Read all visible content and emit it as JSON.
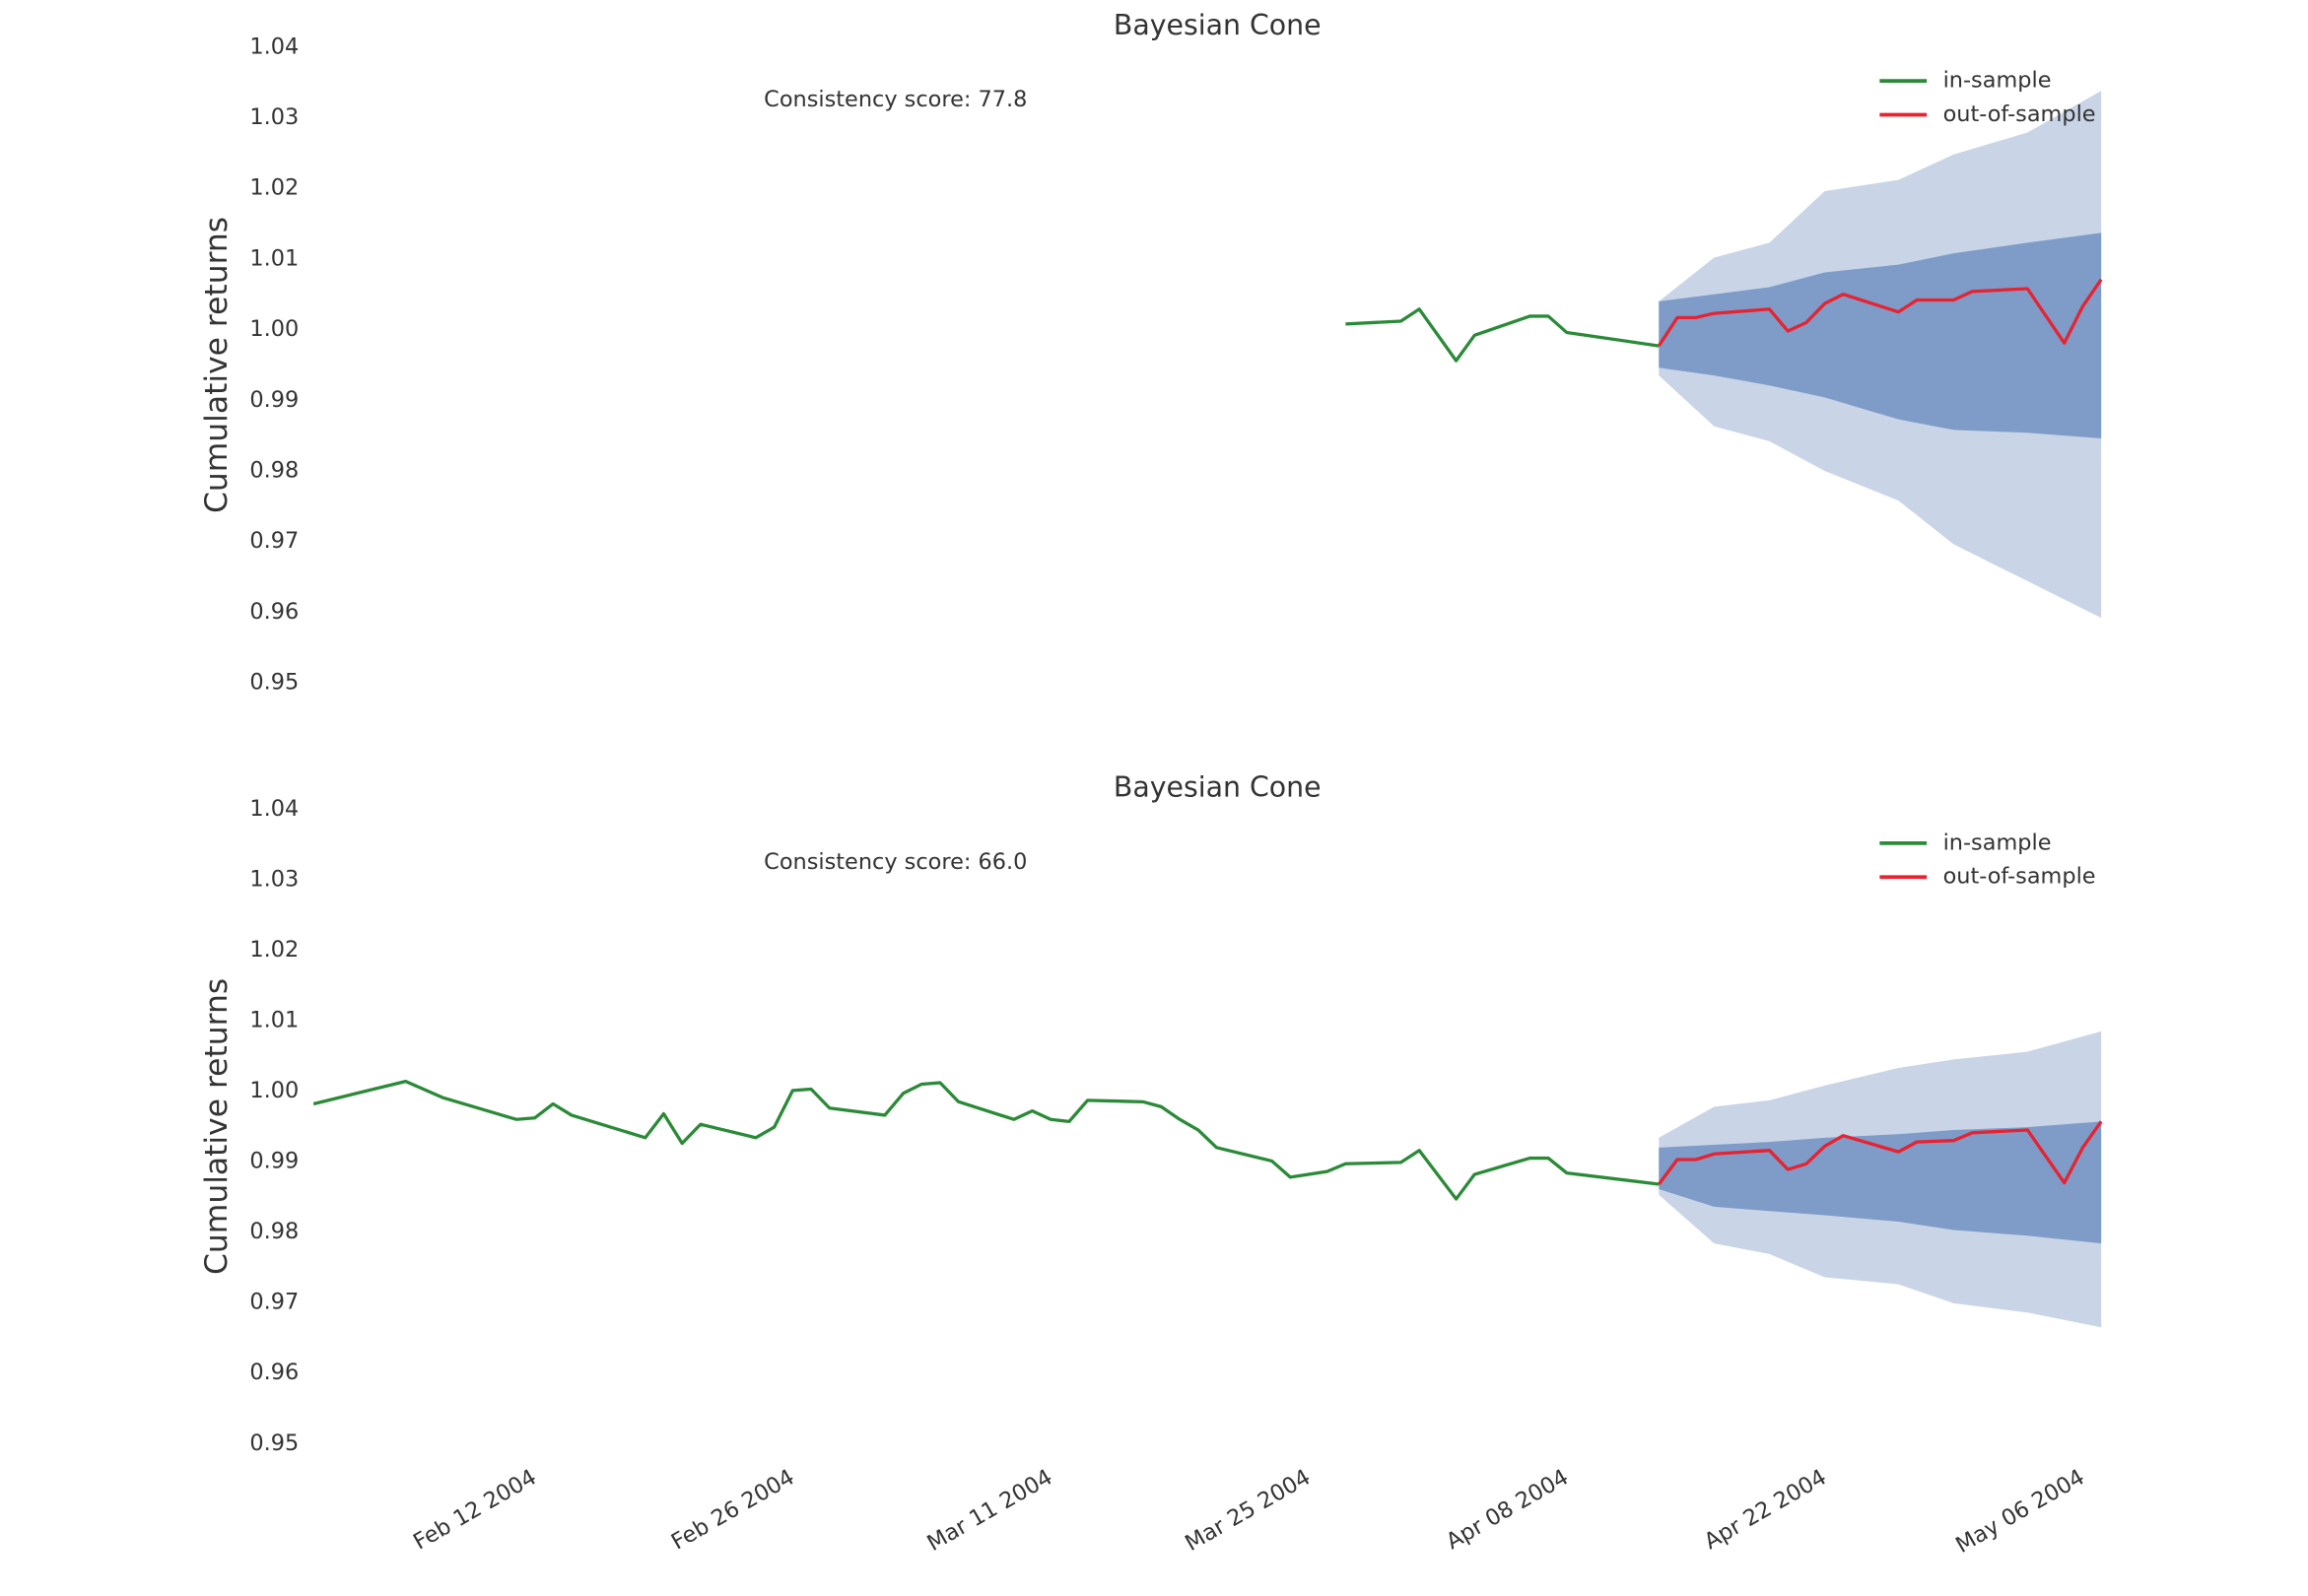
{
  "chart_data": [
    {
      "type": "line",
      "title": "Bayesian Cone",
      "ylabel": "Cumulative returns",
      "annotation": "Consistency score: 77.8",
      "xlim": [
        "2004-01-31",
        "2004-05-08"
      ],
      "ylim": [
        0.95,
        1.04
      ],
      "yticks": [
        0.95,
        0.96,
        0.97,
        0.98,
        0.99,
        {
          "value": 1,
          "label": "1.00"
        },
        1.01,
        1.02,
        1.03,
        1.04
      ],
      "grid": false,
      "legend": "upper right",
      "series": [
        {
          "name": "in-sample",
          "color": "#2a8a37",
          "x": [
            "2004-03-27",
            "2004-03-30",
            "2004-03-31",
            "2004-04-02",
            "2004-04-03",
            "2004-04-06",
            "2004-04-07",
            "2004-04-08",
            "2004-04-13"
          ],
          "values": [
            1.0008,
            1.0012,
            1.0029,
            0.9956,
            0.9992,
            1.0019,
            1.0019,
            0.9996,
            0.9977
          ]
        },
        {
          "name": "out-of-sample",
          "color": "#e8222f",
          "x": [
            "2004-04-13",
            "2004-04-14",
            "2004-04-15",
            "2004-04-16",
            "2004-04-19",
            "2004-04-20",
            "2004-04-21",
            "2004-04-22",
            "2004-04-23",
            "2004-04-26",
            "2004-04-27",
            "2004-04-29",
            "2004-04-30",
            "2004-05-03",
            "2004-05-05",
            "2004-05-06",
            "2004-05-07"
          ],
          "values": [
            0.9977,
            1.0017,
            1.0017,
            1.0023,
            1.0029,
            0.9998,
            1.001,
            1.0037,
            1.005,
            1.0025,
            1.0042,
            1.0042,
            1.0054,
            1.0058,
            0.9981,
            1.0033,
            1.0071
          ]
        }
      ],
      "cone": {
        "x": [
          "2004-04-13",
          "2004-04-16",
          "2004-04-19",
          "2004-04-22",
          "2004-04-26",
          "2004-04-29",
          "2004-05-03",
          "2004-05-07"
        ],
        "bands": [
          {
            "color": "#c9d4e7",
            "upper": [
              1.004,
              1.0102,
              1.0123,
              1.0196,
              1.0212,
              1.0248,
              1.0279,
              1.0338
            ],
            "lower": [
              0.9935,
              0.9863,
              0.9842,
              0.98,
              0.9758,
              0.9696,
              0.9644,
              0.9592
            ]
          },
          {
            "color": "#7f9bc8",
            "upper": [
              1.004,
              1.005,
              1.006,
              1.0081,
              1.0092,
              1.0108,
              1.0123,
              1.0137
            ],
            "lower": [
              0.9946,
              0.9935,
              0.9921,
              0.9904,
              0.9873,
              0.9858,
              0.9854,
              0.9846
            ]
          }
        ]
      }
    },
    {
      "type": "line",
      "title": "Bayesian Cone",
      "ylabel": "Cumulative returns",
      "annotation": "Consistency score: 66.0",
      "xlim": [
        "2004-01-31",
        "2004-05-08"
      ],
      "ylim": [
        0.95,
        1.04
      ],
      "xticks": [
        {
          "value": "2004-02-12",
          "label": "Feb 12 2004"
        },
        {
          "value": "2004-02-26",
          "label": "Feb 26 2004"
        },
        {
          "value": "2004-03-11",
          "label": "Mar 11 2004"
        },
        {
          "value": "2004-03-25",
          "label": "Mar 25 2004"
        },
        {
          "value": "2004-04-08",
          "label": "Apr 08 2004"
        },
        {
          "value": "2004-04-22",
          "label": "Apr 22 2004"
        },
        {
          "value": "2004-05-06",
          "label": "May 06 2004"
        }
      ],
      "yticks": [
        0.95,
        0.96,
        0.97,
        0.98,
        0.99,
        {
          "value": 1,
          "label": "1.00"
        },
        1.01,
        1.02,
        1.03,
        1.04
      ],
      "grid": false,
      "legend": "upper right",
      "series": [
        {
          "name": "in-sample",
          "color": "#2a8a37",
          "x": [
            "2004-01-31",
            "2004-02-05",
            "2004-02-07",
            "2004-02-11",
            "2004-02-12",
            "2004-02-13",
            "2004-02-14",
            "2004-02-18",
            "2004-02-19",
            "2004-02-20",
            "2004-02-21",
            "2004-02-24",
            "2004-02-25",
            "2004-02-26",
            "2004-02-27",
            "2004-02-28",
            "2004-03-02",
            "2004-03-03",
            "2004-03-04",
            "2004-03-05",
            "2004-03-06",
            "2004-03-09",
            "2004-03-10",
            "2004-03-11",
            "2004-03-12",
            "2004-03-13",
            "2004-03-16",
            "2004-03-17",
            "2004-03-18",
            "2004-03-19",
            "2004-03-20",
            "2004-03-23",
            "2004-03-24",
            "2004-03-26",
            "2004-03-27",
            "2004-03-30",
            "2004-03-31",
            "2004-04-02",
            "2004-04-03",
            "2004-04-06",
            "2004-04-07",
            "2004-04-08",
            "2004-04-13"
          ],
          "values": [
            0.9982,
            1.0014,
            0.9991,
            0.996,
            0.9962,
            0.9982,
            0.9966,
            0.9934,
            0.9968,
            0.9926,
            0.9953,
            0.9934,
            0.9949,
            1.0001,
            1.0003,
            0.9976,
            0.9966,
            0.9997,
            1.001,
            1.0012,
            0.9985,
            0.996,
            0.9972,
            0.996,
            0.9957,
            0.9987,
            0.9985,
            0.9978,
            0.996,
            0.9945,
            0.992,
            0.9901,
            0.9878,
            0.9886,
            0.9897,
            0.9899,
            0.9916,
            0.9847,
            0.9882,
            0.9905,
            0.9905,
            0.9884,
            0.9868
          ]
        },
        {
          "name": "out-of-sample",
          "color": "#e8222f",
          "x": [
            "2004-04-13",
            "2004-04-14",
            "2004-04-15",
            "2004-04-16",
            "2004-04-19",
            "2004-04-20",
            "2004-04-21",
            "2004-04-22",
            "2004-04-23",
            "2004-04-26",
            "2004-04-27",
            "2004-04-29",
            "2004-04-30",
            "2004-05-03",
            "2004-05-05",
            "2004-05-06",
            "2004-05-07"
          ],
          "values": [
            0.9868,
            0.9903,
            0.9903,
            0.9911,
            0.9916,
            0.9889,
            0.9897,
            0.9922,
            0.9937,
            0.9914,
            0.9928,
            0.993,
            0.9941,
            0.9945,
            0.987,
            0.992,
            0.9957
          ]
        }
      ],
      "cone": {
        "x": [
          "2004-04-13",
          "2004-04-16",
          "2004-04-19",
          "2004-04-22",
          "2004-04-26",
          "2004-04-29",
          "2004-05-03",
          "2004-05-07"
        ],
        "bands": [
          {
            "color": "#c9d4e7",
            "upper": [
              0.9934,
              0.9978,
              0.9987,
              1.0008,
              1.0033,
              1.0045,
              1.0056,
              1.0085
            ],
            "lower": [
              0.9853,
              0.9784,
              0.9769,
              0.9736,
              0.9726,
              0.9699,
              0.9686,
              0.9665
            ]
          },
          {
            "color": "#7f9bc8",
            "upper": [
              0.992,
              0.9924,
              0.9928,
              0.9934,
              0.9939,
              0.9945,
              0.9949,
              0.9957
            ],
            "lower": [
              0.9861,
              0.9836,
              0.983,
              0.9824,
              0.9815,
              0.9803,
              0.9795,
              0.9784
            ]
          }
        ]
      }
    }
  ]
}
